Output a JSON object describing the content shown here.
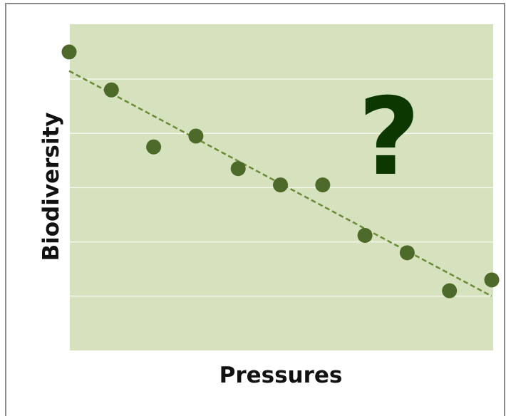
{
  "chart_data": {
    "type": "scatter",
    "xlabel": "Pressures",
    "ylabel": "Biodiversity",
    "annotation": "?",
    "xlim": [
      0,
      10
    ],
    "ylim": [
      0,
      6
    ],
    "grid": true,
    "y_gridlines": [
      1,
      2,
      3,
      4,
      5
    ],
    "trendline": {
      "style": "dashed",
      "x": [
        0,
        10
      ],
      "y": [
        5.15,
        1.0
      ]
    },
    "points": [
      {
        "x": 0,
        "y": 5.5
      },
      {
        "x": 1,
        "y": 4.8
      },
      {
        "x": 2,
        "y": 3.75
      },
      {
        "x": 3,
        "y": 3.95
      },
      {
        "x": 4,
        "y": 3.35
      },
      {
        "x": 5,
        "y": 3.05
      },
      {
        "x": 6,
        "y": 3.05
      },
      {
        "x": 7,
        "y": 2.12
      },
      {
        "x": 8,
        "y": 1.8
      },
      {
        "x": 9,
        "y": 1.1
      },
      {
        "x": 10,
        "y": 1.3
      }
    ],
    "colors": {
      "plot_background": "#d6e2bd",
      "gridline": "#f4f7ec",
      "point": "#4e6a2a",
      "trendline": "#6b8a3a",
      "annotation": "#0c3800"
    }
  }
}
